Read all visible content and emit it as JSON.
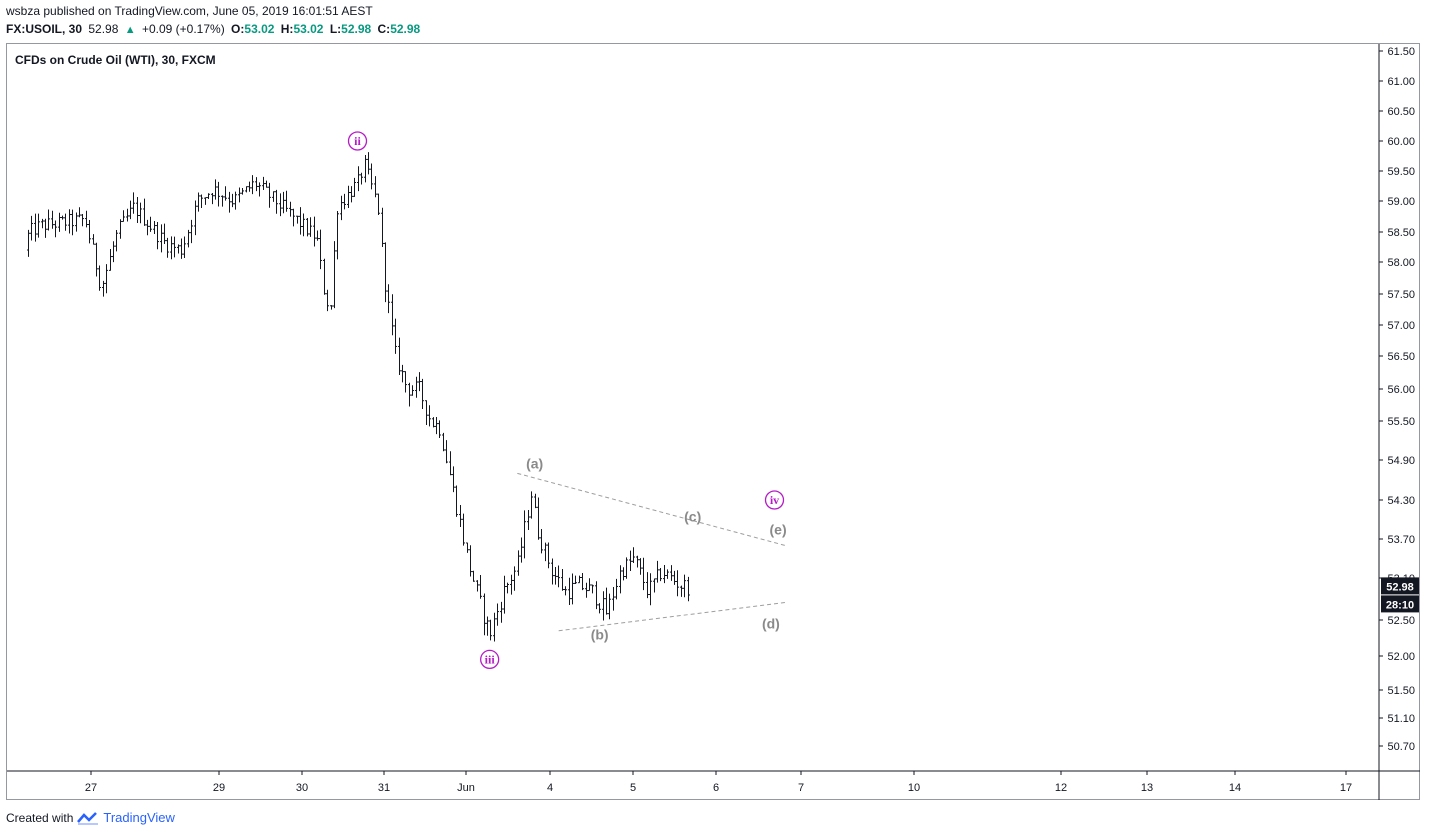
{
  "header": {
    "line1": "wsbza published on TradingView.com, June 05, 2019 16:01:51 AEST",
    "symbol": "FX:USOIL, 30",
    "last": "52.98",
    "change": "+0.09 (+0.17%)",
    "o_label": "O:",
    "o_val": "53.02",
    "h_label": "H:",
    "h_val": "53.02",
    "l_label": "L:",
    "l_val": "52.98",
    "c_label": "C:",
    "c_val": "52.98"
  },
  "chart_title": "CFDs on Crude Oil (WTI), 30, FXCM",
  "footer": {
    "created_with": "Created with",
    "brand": "TradingView"
  },
  "colors": {
    "bars": "#131722",
    "wave_purple": "#b61cc6",
    "wave_gray": "#8a8a8a",
    "price_tag": "#131722"
  },
  "chart_data": {
    "type": "ohlc",
    "y_ticks": [
      61.5,
      61.0,
      60.5,
      60.0,
      59.5,
      59.0,
      58.5,
      58.0,
      57.5,
      57.0,
      56.5,
      56.0,
      55.5,
      54.9,
      54.3,
      53.7,
      53.1,
      52.5,
      52.0,
      51.5,
      51.1,
      50.7
    ],
    "x_ticks": [
      "27",
      "29",
      "30",
      "31",
      "Jun",
      "4",
      "5",
      "6",
      "7",
      "10",
      "12",
      "13",
      "14",
      "17"
    ],
    "last_price_label": "52.98",
    "countdown_label": "28:10",
    "wave_labels": [
      {
        "text": "ii",
        "style": "circle-purple",
        "date": "May 30 18:00",
        "price": 60.0
      },
      {
        "text": "iii",
        "style": "circle-purple",
        "date": "Jun 3 08:00",
        "price": 51.95
      },
      {
        "text": "iv",
        "style": "circle-purple",
        "date": "Jun 6 18:00",
        "price": 54.3
      },
      {
        "text": "(a)",
        "style": "gray",
        "date": "Jun 3 21:00",
        "price": 54.85
      },
      {
        "text": "(b)",
        "style": "gray",
        "date": "Jun 4 16:00",
        "price": 52.3
      },
      {
        "text": "(c)",
        "style": "gray",
        "date": "Jun 5 19:00",
        "price": 54.05
      },
      {
        "text": "(d)",
        "style": "gray",
        "date": "Jun 6 17:00",
        "price": 52.45
      },
      {
        "text": "(e)",
        "style": "gray",
        "date": "Jun 6 19:00",
        "price": 53.85
      }
    ],
    "trendlines": [
      {
        "from": {
          "date": "Jun 3 16:00",
          "price": 54.7
        },
        "to": {
          "date": "Jun 6 21:00",
          "price": 53.6
        }
      },
      {
        "from": {
          "date": "Jun 4 04:00",
          "price": 52.35
        },
        "to": {
          "date": "Jun 6 21:00",
          "price": 52.75
        }
      }
    ],
    "path": [
      [
        "May 24 12:00",
        58.2
      ],
      [
        "May 24 18:00",
        58.5
      ],
      [
        "May 25 00:00",
        58.6
      ],
      [
        "May 27 00:00",
        58.7
      ],
      [
        "May 27 06:00",
        57.6
      ],
      [
        "May 27 12:00",
        58.5
      ],
      [
        "May 27 18:00",
        58.9
      ],
      [
        "May 28 00:00",
        58.6
      ],
      [
        "May 28 06:00",
        58.3
      ],
      [
        "May 28 12:00",
        58.2
      ],
      [
        "May 28 18:00",
        59.0
      ],
      [
        "May 29 00:00",
        59.2
      ],
      [
        "May 29 06:00",
        59.0
      ],
      [
        "May 29 12:00",
        59.3
      ],
      [
        "May 29 18:00",
        59.0
      ],
      [
        "May 30 00:00",
        58.7
      ],
      [
        "May 30 06:00",
        58.4
      ],
      [
        "May 30 08:00",
        57.6
      ],
      [
        "May 30 10:00",
        57.2
      ],
      [
        "May 30 12:00",
        58.9
      ],
      [
        "May 30 15:00",
        59.1
      ],
      [
        "May 30 18:00",
        59.3
      ],
      [
        "May 30 20:00",
        59.6
      ],
      [
        "May 31 00:00",
        58.9
      ],
      [
        "May 31 02:00",
        57.8
      ],
      [
        "May 31 06:00",
        56.5
      ],
      [
        "May 31 10:00",
        56.0
      ],
      [
        "May 31 14:00",
        56.0
      ],
      [
        "May 31 18:00",
        55.5
      ],
      [
        "May 31 21:00",
        55.4
      ],
      [
        "Jun 2 00:00",
        54.8
      ],
      [
        "Jun 3 02:00",
        53.3
      ],
      [
        "Jun 3 06:00",
        52.6
      ],
      [
        "Jun 3 08:00",
        52.3
      ],
      [
        "Jun 3 12:00",
        52.9
      ],
      [
        "Jun 3 16:00",
        53.3
      ],
      [
        "Jun 3 20:00",
        54.4
      ],
      [
        "Jun 3 22:00",
        53.8
      ],
      [
        "Jun 4 02:00",
        53.2
      ],
      [
        "Jun 4 06:00",
        52.9
      ],
      [
        "Jun 4 10:00",
        53.0
      ],
      [
        "Jun 4 14:00",
        52.9
      ],
      [
        "Jun 4 18:00",
        52.6
      ],
      [
        "Jun 4 22:00",
        53.2
      ],
      [
        "Jun 5 02:00",
        53.4
      ],
      [
        "Jun 5 06:00",
        52.9
      ],
      [
        "Jun 5 10:00",
        53.2
      ],
      [
        "Jun 5 14:00",
        53.05
      ],
      [
        "Jun 5 16:00",
        52.98
      ]
    ]
  }
}
